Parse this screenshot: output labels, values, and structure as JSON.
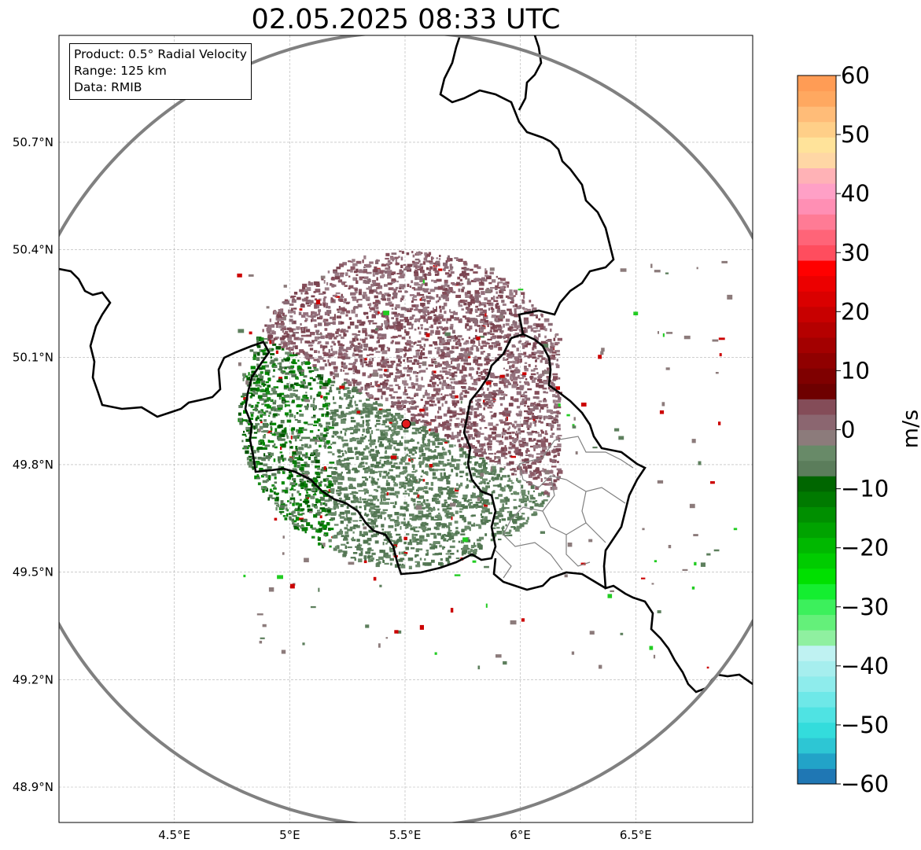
{
  "title": "02.05.2025 08:33 UTC",
  "info": {
    "product": "Product: 0.5° Radial Velocity",
    "range": "Range: 125 km",
    "data": "Data: RMIB"
  },
  "map": {
    "lon_range": [
      4.0,
      7.0
    ],
    "lat_range": [
      48.8,
      51.0
    ],
    "lon_ticks": [
      {
        "value": 4.5,
        "label": "4.5°E"
      },
      {
        "value": 5.0,
        "label": "5°E"
      },
      {
        "value": 5.5,
        "label": "5.5°E"
      },
      {
        "value": 6.0,
        "label": "6°E"
      },
      {
        "value": 6.5,
        "label": "6.5°E"
      }
    ],
    "lat_ticks": [
      {
        "value": 48.9,
        "label": "48.9°N"
      },
      {
        "value": 49.2,
        "label": "49.2°N"
      },
      {
        "value": 49.5,
        "label": "49.5°N"
      },
      {
        "value": 49.8,
        "label": "49.8°N"
      },
      {
        "value": 50.1,
        "label": "50.1°N"
      },
      {
        "value": 50.4,
        "label": "50.4°N"
      },
      {
        "value": 50.7,
        "label": "50.7°N"
      }
    ],
    "radar_site": {
      "lon": 5.505,
      "lat": 49.914
    },
    "range_ring_color": "#808080",
    "border_color": "#000000",
    "admin_border_color": "#808080"
  },
  "colorbar": {
    "label": "m/s",
    "min": -60,
    "max": 60,
    "ticks": [
      {
        "value": 60,
        "label": "60"
      },
      {
        "value": 50,
        "label": "50"
      },
      {
        "value": 40,
        "label": "40"
      },
      {
        "value": 30,
        "label": "30"
      },
      {
        "value": 20,
        "label": "20"
      },
      {
        "value": 10,
        "label": "10"
      },
      {
        "value": 0,
        "label": "0"
      },
      {
        "value": -10,
        "label": "−10"
      },
      {
        "value": -20,
        "label": "−20"
      },
      {
        "value": -30,
        "label": "−30"
      },
      {
        "value": -40,
        "label": "−40"
      },
      {
        "value": -50,
        "label": "−50"
      },
      {
        "value": -60,
        "label": "−60"
      }
    ],
    "colors": [
      "#1f77b4",
      "#22a3c8",
      "#2dc6d4",
      "#33dcdc",
      "#4fe3e3",
      "#6ee8e8",
      "#8eecec",
      "#a6eeee",
      "#bff2f2",
      "#8ff0a0",
      "#64f07a",
      "#3cf05c",
      "#14ee30",
      "#00e000",
      "#00cc00",
      "#00b800",
      "#00a300",
      "#008f00",
      "#007a00",
      "#006600",
      "#5b7d5b",
      "#688a68",
      "#8c7b7b",
      "#8b6670",
      "#844c58",
      "#6e0000",
      "#7f0000",
      "#900000",
      "#a30000",
      "#b50000",
      "#c80000",
      "#da0000",
      "#ec0000",
      "#ff0000",
      "#ff4d5e",
      "#ff6478",
      "#ff7b95",
      "#ff8fb4",
      "#ffa0c6",
      "#ffb2b6",
      "#ffd7a5",
      "#ffe39a",
      "#ffcf88",
      "#ffbc78",
      "#ffa860",
      "#ff9c55"
    ]
  }
}
